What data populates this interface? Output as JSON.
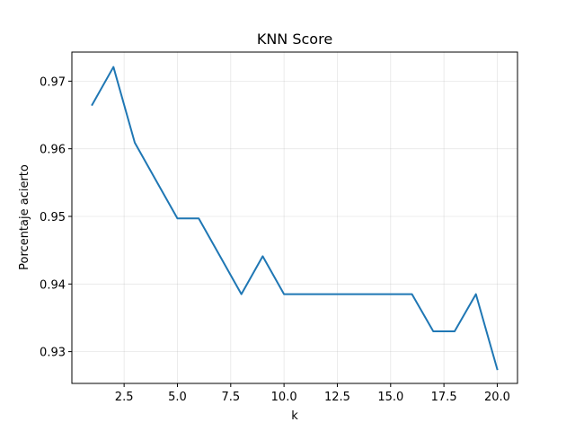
{
  "chart_data": {
    "type": "line",
    "title": "KNN Score",
    "xlabel": "k",
    "ylabel": "Porcentaje acierto",
    "xlim": [
      0.05,
      20.95
    ],
    "ylim": [
      0.9253,
      0.9743
    ],
    "xticks": [
      2.5,
      5.0,
      7.5,
      10.0,
      12.5,
      15.0,
      17.5,
      20.0
    ],
    "xtick_labels": [
      "2.5",
      "5.0",
      "7.5",
      "10.0",
      "12.5",
      "15.0",
      "17.5",
      "20.0"
    ],
    "yticks": [
      0.93,
      0.94,
      0.95,
      0.96,
      0.97
    ],
    "ytick_labels": [
      "0.93",
      "0.94",
      "0.95",
      "0.96",
      "0.97"
    ],
    "grid": true,
    "series": [
      {
        "color": "#1f77b4",
        "x": [
          1,
          2,
          3,
          4,
          5,
          6,
          7,
          8,
          9,
          10,
          11,
          12,
          13,
          14,
          15,
          16,
          17,
          18,
          19,
          20
        ],
        "y": [
          0.9665,
          0.9721,
          0.9609,
          0.9553,
          0.9497,
          0.9497,
          0.9441,
          0.9385,
          0.9441,
          0.9385,
          0.9385,
          0.9385,
          0.9385,
          0.9385,
          0.9385,
          0.9385,
          0.933,
          0.933,
          0.9385,
          0.9274
        ]
      }
    ]
  }
}
